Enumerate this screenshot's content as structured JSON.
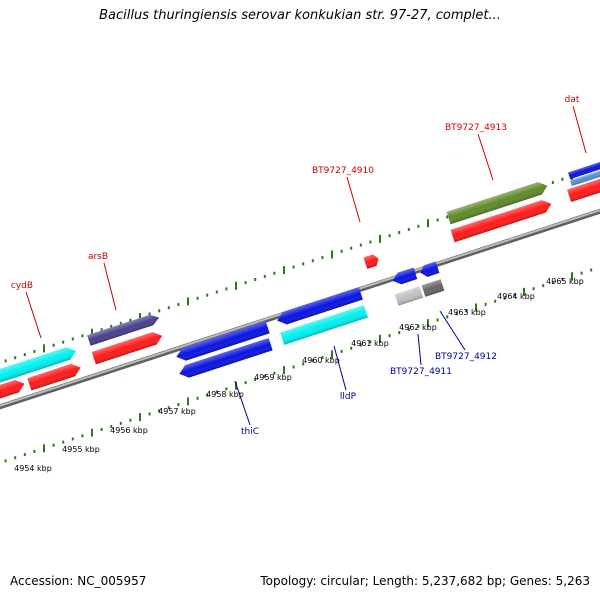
{
  "header": {
    "title": "Bacillus thuringiensis serovar konkukian str. 97-27, complet..."
  },
  "footer": {
    "accession": "Accession: NC_005957",
    "summary": "Topology: circular; Length: 5,237,682 bp; Genes: 5,263"
  },
  "colors": {
    "backbone": "#9a9a9a",
    "tick_green": "#2a7a18",
    "forward_gene": "#ff1a1a",
    "cds_purple": "#4a3f8c",
    "cds_cyan": "#00f0f0",
    "cds_blue": "#0a14e0",
    "cds_olive": "#5f8a2a",
    "cds_lightblue": "#4f8fd0",
    "cds_silver": "#c0c0c0",
    "cds_darkgray": "#666666",
    "label_red": "#cc0000",
    "label_blue": "#000099"
  },
  "gene_labels_forward": [
    "cydB",
    "arsB",
    "BT9727_4910",
    "BT9727_4913",
    "dat"
  ],
  "gene_labels_reverse": [
    "thiC",
    "lldP",
    "BT9727_4911",
    "BT9727_4912"
  ],
  "kbp_labels": [
    "4954 kbp",
    "4955 kbp",
    "4956 kbp",
    "4957 kbp",
    "4958 kbp",
    "4959 kbp",
    "4960 kbp",
    "4961 kbp",
    "4962 kbp",
    "4963 kbp",
    "4964 kbp",
    "4965 kbp"
  ]
}
